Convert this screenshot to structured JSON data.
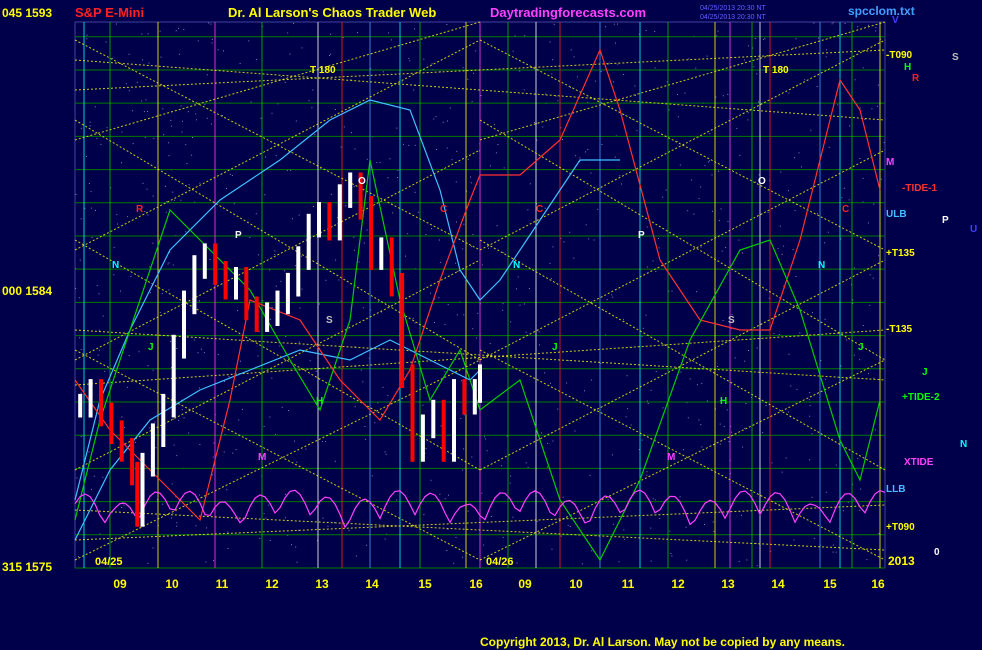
{
  "header": {
    "left_price_label": "045 1593",
    "symbol": "S&P E-Mini",
    "title": "Dr. Al Larson's Chaos Trader Web",
    "site": "Daytradingforecasts.com",
    "stamp_line1": "04/25/2013 20:30 NT",
    "stamp_line2": "04/25/2013 20:30 NT",
    "file": "spcclom.txt",
    "corner_letter": "V"
  },
  "axes": {
    "y_labels": [
      {
        "text": "045 1593",
        "value": 1593
      },
      {
        "text": "000 1584",
        "value": 1584
      },
      {
        "text": "315 1575",
        "value": 1575
      }
    ],
    "x_ticks": [
      "09",
      "10",
      "11",
      "12",
      "13",
      "14",
      "15",
      "16",
      "09",
      "10",
      "11",
      "12",
      "13",
      "14",
      "15",
      "16"
    ],
    "date_labels": [
      "04/25",
      "04/26"
    ],
    "year_label": "2013",
    "ylim": [
      1575,
      1593.5
    ]
  },
  "right_labels": [
    {
      "text": "-T090",
      "color": "#ffff00"
    },
    {
      "text": "H",
      "color": "#00ff00"
    },
    {
      "text": "R",
      "color": "#ff2020"
    },
    {
      "text": "S",
      "color": "#c0c0c0"
    },
    {
      "text": "M",
      "color": "#ff40ff"
    },
    {
      "text": "-TIDE-1",
      "color": "#ff3030"
    },
    {
      "text": "ULB",
      "color": "#40c0ff"
    },
    {
      "text": "P",
      "color": "#ffffff"
    },
    {
      "text": "U",
      "color": "#4040ff"
    },
    {
      "text": "+T135",
      "color": "#ffff00"
    },
    {
      "text": "-T135",
      "color": "#ffff00"
    },
    {
      "text": "J",
      "color": "#00ff00"
    },
    {
      "text": "+TIDE-2",
      "color": "#00ff00"
    },
    {
      "text": "N",
      "color": "#00ffff"
    },
    {
      "text": "XTIDE",
      "color": "#ff40ff"
    },
    {
      "text": "LLB",
      "color": "#40c0ff"
    },
    {
      "text": "+T090",
      "color": "#ffff00"
    },
    {
      "text": "0",
      "color": "#ffffff"
    }
  ],
  "t_labels": [
    "T 180",
    "T 180"
  ],
  "copyright": "Copyright 2013, Dr. Al Larson. May not be copied by any means.",
  "colors": {
    "background": "#00004a",
    "price_up": "#ffffff",
    "price_down": "#ff0000",
    "tide1": "#ff3030",
    "tide2": "#00cc00",
    "xtide": "#ff40ff",
    "ulb": "#40c0ff",
    "llb": "#40c0ff",
    "grid": "#00a000",
    "yellow_lines": "#ffff00"
  },
  "chart_data": {
    "type": "line",
    "title": "S&P E-Mini",
    "x_label": "",
    "y_label": "",
    "x_range_sessions": [
      "04/25",
      "04/26"
    ],
    "ylim": [
      1575,
      1593.5
    ],
    "price_series": {
      "name": "",
      "x": [
        8.4,
        8.6,
        8.8,
        9.0,
        9.2,
        9.4,
        9.5,
        9.6,
        9.8,
        10.0,
        10.2,
        10.4,
        10.6,
        10.8,
        11.0,
        11.2,
        11.4,
        11.6,
        11.8,
        12.0,
        12.2,
        12.4,
        12.6,
        12.8,
        13.0,
        13.2,
        13.4,
        13.6,
        13.8,
        14.0,
        14.2,
        14.4,
        14.6,
        14.8,
        15.0,
        15.2,
        15.4,
        15.6,
        15.8,
        16.0,
        16.1
      ],
      "values": [
        1580.5,
        1581.0,
        1580.2,
        1579.6,
        1579.0,
        1578.2,
        1576.8,
        1578.5,
        1579.5,
        1580.5,
        1582.5,
        1584.0,
        1585.2,
        1585.6,
        1585.0,
        1584.5,
        1584.8,
        1583.8,
        1583.4,
        1583.6,
        1584.0,
        1584.6,
        1585.5,
        1586.6,
        1587.0,
        1586.5,
        1587.6,
        1588.0,
        1587.2,
        1585.5,
        1585.8,
        1584.6,
        1581.5,
        1579.0,
        1579.8,
        1580.3,
        1579.0,
        1581.0,
        1580.6,
        1581.0,
        1581.5
      ]
    },
    "series": [
      {
        "name": "-TIDE-1",
        "color": "#ff3030"
      },
      {
        "name": "+TIDE-2",
        "color": "#00cc00"
      },
      {
        "name": "XTIDE",
        "color": "#ff40ff"
      },
      {
        "name": "ULB",
        "color": "#40c0ff"
      },
      {
        "name": "LLB",
        "color": "#40c0ff"
      }
    ]
  }
}
